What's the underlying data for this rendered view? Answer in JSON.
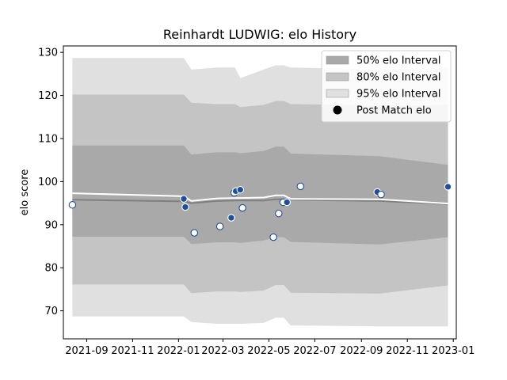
{
  "chart_data": {
    "type": "line",
    "title": "Reinhardt LUDWIG: elo History",
    "xlabel": "",
    "ylabel": "elo score",
    "xlim": [
      "2021-08-01",
      "2023-01-05"
    ],
    "ylim": [
      63.5,
      131.5
    ],
    "x_ticks": [
      "2021-09",
      "2021-11",
      "2022-01",
      "2022-03",
      "2022-05",
      "2022-07",
      "2022-09",
      "2022-11",
      "2023-01"
    ],
    "x_tick_labels": [
      "2021-09",
      "2021-11",
      "2022-01",
      "2022-03",
      "2022-05",
      "2022-07",
      "2022-09",
      "2022-11",
      "2023-01"
    ],
    "y_ticks": [
      70,
      80,
      90,
      100,
      110,
      120,
      130
    ],
    "y_tick_labels": [
      "70",
      "80",
      "90",
      "100",
      "110",
      "120",
      "130"
    ],
    "legend_position": "top-right",
    "legend": [
      {
        "label": "50% elo Interval",
        "kind": "band",
        "color": "#a9a9a9"
      },
      {
        "label": "80% elo Interval",
        "kind": "band",
        "color": "#c4c4c4"
      },
      {
        "label": "95% elo Interval",
        "kind": "band",
        "color": "#e0e0e0"
      },
      {
        "label": "Post Match elo",
        "kind": "marker",
        "color": "#000000"
      }
    ],
    "bands": {
      "x": [
        "2021-08-13",
        "2022-01-08",
        "2022-01-18",
        "2022-02-21",
        "2022-03-17",
        "2022-03-24",
        "2022-04-24",
        "2022-05-10",
        "2022-05-21",
        "2022-05-30",
        "2022-09-25",
        "2022-12-25"
      ],
      "p95_upper": [
        128.7,
        128.7,
        126.0,
        126.5,
        126.5,
        124.0,
        126.0,
        127.0,
        127.0,
        126.5,
        126.0,
        126.5
      ],
      "p95_lower": [
        68.7,
        68.7,
        67.4,
        67.0,
        67.0,
        67.0,
        67.2,
        68.4,
        68.4,
        66.6,
        66.4,
        66.4
      ],
      "p80_upper": [
        120.2,
        120.2,
        118.3,
        118.0,
        118.0,
        117.3,
        117.8,
        118.7,
        118.7,
        118.0,
        117.7,
        117.8
      ],
      "p80_lower": [
        76.1,
        76.1,
        74.1,
        74.5,
        74.5,
        74.4,
        74.7,
        76.0,
        76.0,
        74.2,
        74.0,
        75.9
      ],
      "p50_upper": [
        108.4,
        108.4,
        106.3,
        106.8,
        106.8,
        106.6,
        107.1,
        108.1,
        108.1,
        106.5,
        105.9,
        103.9
      ],
      "p50_lower": [
        87.2,
        87.2,
        85.5,
        85.9,
        85.9,
        85.8,
        86.3,
        87.1,
        87.1,
        86.0,
        85.4,
        87.1
      ],
      "median": [
        95.8,
        95.4,
        95.0,
        95.5,
        95.6,
        95.6,
        95.6,
        95.9,
        95.9,
        95.8,
        95.5,
        94.8
      ],
      "mean": [
        97.3,
        96.6,
        95.5,
        96.1,
        96.2,
        96.2,
        96.3,
        96.8,
        96.8,
        96.0,
        95.9,
        94.9
      ]
    },
    "matches": {
      "x": [
        "2021-08-13",
        "2022-01-08",
        "2022-01-10",
        "2022-01-22",
        "2022-02-25",
        "2022-03-12",
        "2022-03-16",
        "2022-03-18",
        "2022-03-24",
        "2022-03-27",
        "2022-05-07",
        "2022-05-14",
        "2022-05-20",
        "2022-05-25",
        "2022-06-12",
        "2022-09-22",
        "2022-09-27",
        "2022-12-25"
      ],
      "y": [
        94.6,
        96.0,
        94.1,
        88.1,
        89.6,
        91.6,
        97.4,
        97.8,
        98.1,
        93.9,
        87.1,
        92.6,
        95.2,
        95.2,
        98.9,
        97.6,
        97.0,
        98.8
      ],
      "highlight": [
        true,
        false,
        false,
        true,
        true,
        false,
        true,
        false,
        false,
        true,
        true,
        true,
        true,
        false,
        true,
        false,
        true,
        false
      ]
    },
    "colors": {
      "band50": "#a9a9a9",
      "band80": "#c4c4c4",
      "band95": "#e0e0e0",
      "median_line": "#7f7f7f",
      "mean_line": "#ffffff",
      "marker_fill_dark": "#1f4e9c",
      "marker_fill_light": "#ffffff",
      "marker_edge": "#1f4e9c"
    }
  }
}
